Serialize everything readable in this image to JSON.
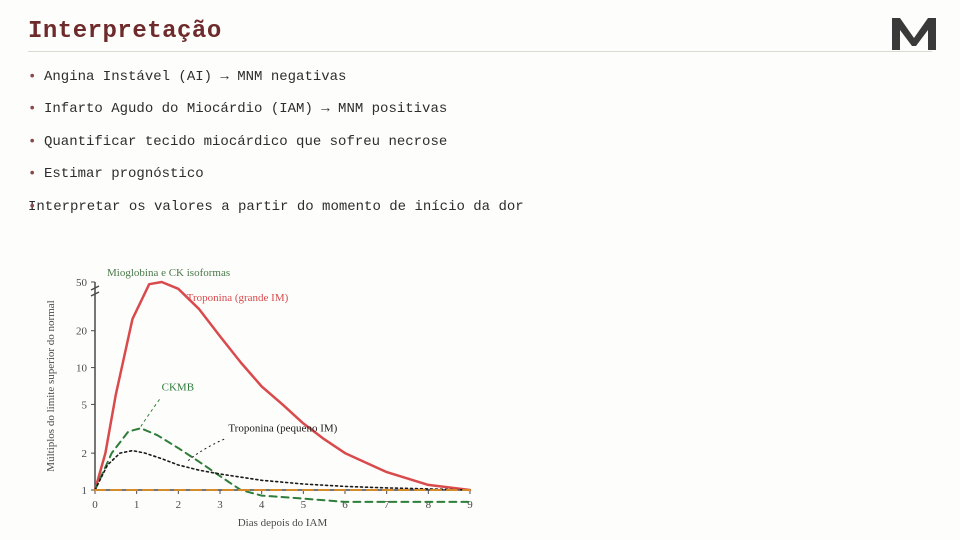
{
  "title": "Interpretação",
  "bullets": [
    "Angina Instável (AI) → MNM negativas",
    "Infarto Agudo do Miocárdio (IAM) → MNM positivas",
    "Quantificar tecido miocárdico que sofreu necrose",
    "Estimar prognóstico",
    "Interpretar os valores a partir do momento de início da dor"
  ],
  "chart": {
    "type": "line",
    "x_label": "Dias depois do IAM",
    "y_label": "Múltiplos do limite superior do normal",
    "x_ticks": [
      0,
      1,
      2,
      3,
      4,
      5,
      6,
      7,
      8,
      9
    ],
    "y_ticks": [
      1,
      2,
      5,
      10,
      20,
      50
    ],
    "y_break": true,
    "y_top_label": "Mioglobina e CK isoformas",
    "background_color": "#fdfdfb",
    "axis_color": "#4a4a4a",
    "curves": [
      {
        "name": "Troponina (grande IM)",
        "label": "Troponina (grande IM)",
        "color": "#d94a4d",
        "dash": "none",
        "width": 2.5,
        "label_xy": [
          2.2,
          35
        ],
        "points": [
          [
            0,
            1
          ],
          [
            0.25,
            2
          ],
          [
            0.5,
            6
          ],
          [
            0.9,
            25
          ],
          [
            1.3,
            48
          ],
          [
            1.6,
            50
          ],
          [
            2.0,
            44
          ],
          [
            2.5,
            30
          ],
          [
            3.0,
            18
          ],
          [
            3.5,
            11
          ],
          [
            4.0,
            7
          ],
          [
            4.5,
            5
          ],
          [
            5.0,
            3.5
          ],
          [
            5.5,
            2.6
          ],
          [
            6.0,
            2.0
          ],
          [
            7.0,
            1.4
          ],
          [
            8.0,
            1.1
          ],
          [
            9.0,
            1.0
          ]
        ]
      },
      {
        "name": "CKMB",
        "label": "CKMB",
        "color": "#2f7d3a",
        "dash": "7,5",
        "width": 2,
        "label_xy": [
          1.6,
          6.5
        ],
        "points": [
          [
            0,
            1
          ],
          [
            0.4,
            2
          ],
          [
            0.8,
            3
          ],
          [
            1.1,
            3.2
          ],
          [
            1.5,
            2.8
          ],
          [
            2.0,
            2.2
          ],
          [
            2.5,
            1.7
          ],
          [
            3.0,
            1.3
          ],
          [
            3.5,
            1.0
          ],
          [
            4.0,
            0.9
          ],
          [
            5.0,
            0.85
          ],
          [
            6.0,
            0.8
          ],
          [
            7.0,
            0.8
          ],
          [
            8.0,
            0.8
          ],
          [
            9.0,
            0.8
          ]
        ]
      },
      {
        "name": "Troponina (pequeno IM)",
        "label": "Troponina (pequeno IM)",
        "color": "#1a1a1a",
        "dash": "2,3",
        "width": 1.6,
        "label_xy": [
          3.2,
          3.0
        ],
        "points": [
          [
            0,
            1
          ],
          [
            0.3,
            1.6
          ],
          [
            0.6,
            2.0
          ],
          [
            0.9,
            2.1
          ],
          [
            1.2,
            2.0
          ],
          [
            1.6,
            1.8
          ],
          [
            2.0,
            1.6
          ],
          [
            2.5,
            1.45
          ],
          [
            3.0,
            1.35
          ],
          [
            4.0,
            1.2
          ],
          [
            5.0,
            1.12
          ],
          [
            6.0,
            1.07
          ],
          [
            7.0,
            1.04
          ],
          [
            8.0,
            1.02
          ],
          [
            9.0,
            1.0
          ]
        ]
      },
      {
        "name": "baseline",
        "label": "",
        "color": "#d88a2a",
        "dash": "10,6",
        "width": 2,
        "label_xy": null,
        "points": [
          [
            0,
            1
          ],
          [
            9,
            1
          ]
        ]
      }
    ]
  },
  "logo_letter": "M",
  "colors": {
    "title": "#6e2b2b",
    "bullet_marker": "#8a4a4a",
    "text": "#2d2d2d"
  }
}
